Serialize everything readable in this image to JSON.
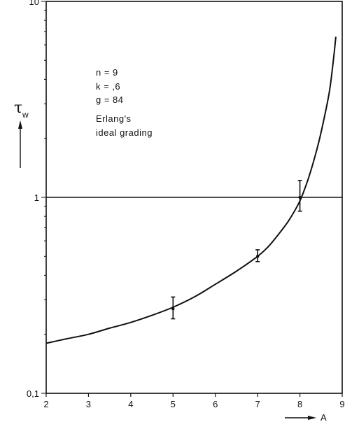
{
  "chart_data": {
    "type": "line",
    "xlabel": "A",
    "ylabel": "τ",
    "ylabel_sub": "w",
    "xlim": [
      2,
      9
    ],
    "ylim": [
      0.1,
      10
    ],
    "y_scale": "log",
    "x_ticks": [
      2,
      3,
      4,
      5,
      6,
      7,
      8,
      9
    ],
    "x_tick_labels": [
      "2",
      "3",
      "4",
      "5",
      "6",
      "7",
      "8",
      "9"
    ],
    "y_ticks": [
      0.1,
      1,
      10
    ],
    "y_tick_labels": [
      "0,1",
      "1",
      "10"
    ],
    "grid": "horizontal at 1 and 10",
    "annotations": [
      "n = 9",
      "k = ,6",
      "g = 84",
      "Erlang's",
      "ideal grading"
    ],
    "series": [
      {
        "x": [
          2.0,
          2.5,
          3.0,
          3.5,
          4.0,
          4.5,
          5.0,
          5.5,
          6.0,
          6.5,
          7.0,
          7.25,
          7.5,
          7.75,
          8.0,
          8.2,
          8.4,
          8.55,
          8.7,
          8.8,
          8.85
        ],
        "y": [
          0.18,
          0.19,
          0.2,
          0.215,
          0.23,
          0.25,
          0.275,
          0.31,
          0.36,
          0.42,
          0.5,
          0.56,
          0.65,
          0.77,
          0.96,
          1.25,
          1.75,
          2.4,
          3.5,
          5.2,
          6.6
        ]
      }
    ],
    "error_bars": [
      {
        "x": 5,
        "y": 0.27,
        "low": 0.24,
        "high": 0.31
      },
      {
        "x": 7,
        "y": 0.5,
        "low": 0.47,
        "high": 0.54
      },
      {
        "x": 8,
        "y": 1.0,
        "low": 0.85,
        "high": 1.22
      }
    ]
  }
}
